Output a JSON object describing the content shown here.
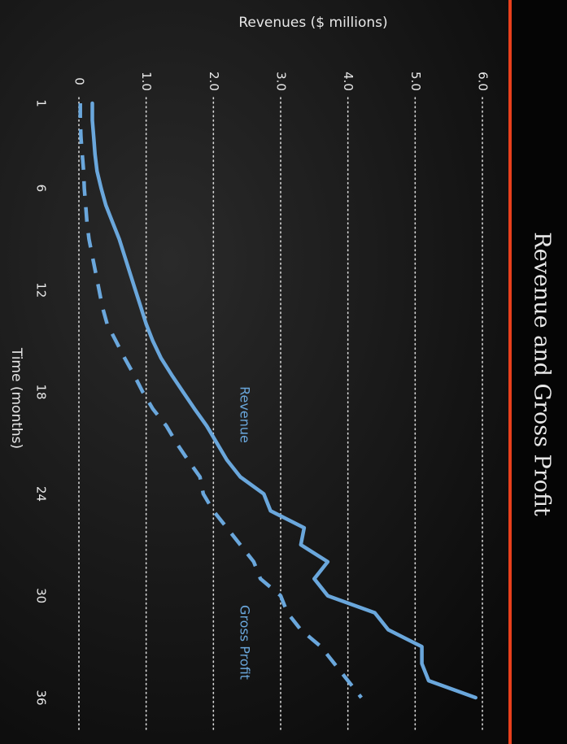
{
  "chart_data": {
    "type": "line",
    "title": "Revenue and Gross Profit",
    "x_label": "Time (months)",
    "y_label": "Revenues ($ millions)",
    "x": [
      1,
      2,
      3,
      4,
      5,
      6,
      7,
      8,
      9,
      10,
      11,
      12,
      13,
      14,
      15,
      16,
      17,
      18,
      19,
      20,
      21,
      22,
      23,
      24,
      25,
      26,
      27,
      28,
      29,
      30,
      31,
      32,
      33,
      34,
      35,
      36
    ],
    "xlim": [
      1,
      36
    ],
    "xticks": [
      1,
      6,
      12,
      18,
      24,
      30,
      36
    ],
    "ylim": [
      0,
      6
    ],
    "yticks": [
      0,
      {
        "value": 1,
        "label": "1.0"
      },
      {
        "value": 2,
        "label": "2.0"
      },
      {
        "value": 3,
        "label": "3.0"
      },
      {
        "value": 4,
        "label": "4.0"
      },
      {
        "value": 5,
        "label": "5.0"
      },
      {
        "value": 6,
        "label": "6.0"
      }
    ],
    "grid": true,
    "series": [
      {
        "name": "Revenue",
        "color": "#6aa7dc",
        "dash": false,
        "values": [
          0.2,
          0.2,
          0.22,
          0.24,
          0.27,
          0.33,
          0.4,
          0.5,
          0.6,
          0.68,
          0.76,
          0.84,
          0.92,
          1.0,
          1.1,
          1.22,
          1.38,
          1.55,
          1.72,
          1.9,
          2.05,
          2.2,
          2.4,
          2.75,
          2.85,
          3.35,
          3.3,
          3.7,
          3.5,
          3.7,
          4.4,
          4.6,
          5.1,
          5.1,
          5.2,
          5.9
        ]
      },
      {
        "name": "Gross Profit",
        "color": "#6aa7dc",
        "dash": true,
        "values": [
          0.02,
          0.02,
          0.03,
          0.05,
          0.07,
          0.08,
          0.1,
          0.12,
          0.15,
          0.2,
          0.25,
          0.3,
          0.35,
          0.42,
          0.55,
          0.68,
          0.82,
          0.95,
          1.1,
          1.3,
          1.45,
          1.62,
          1.8,
          1.85,
          2.0,
          2.2,
          2.4,
          2.6,
          2.7,
          3.0,
          3.1,
          3.3,
          3.6,
          3.8,
          4.0,
          4.2
        ]
      }
    ]
  }
}
